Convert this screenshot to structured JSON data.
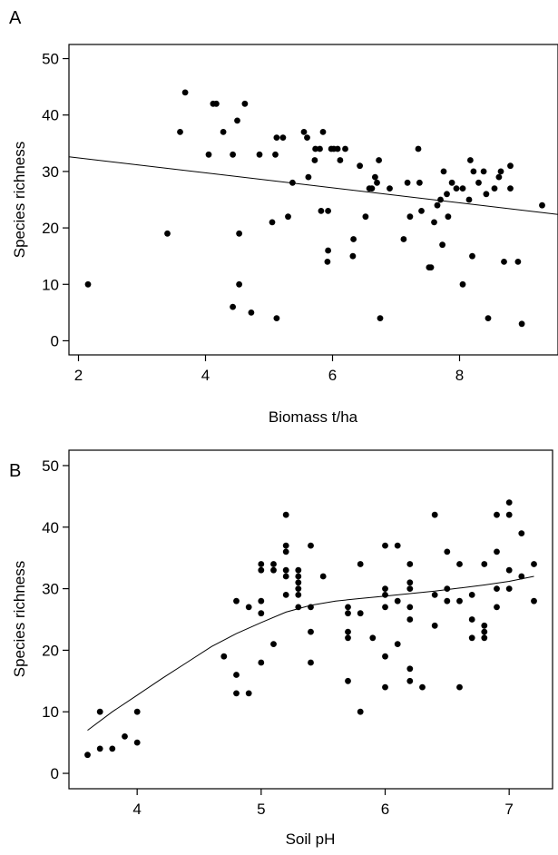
{
  "chart_data": [
    {
      "panel": "A",
      "type": "scatter",
      "xlabel": "Biomass t/ha",
      "ylabel": "Species richness",
      "xlim": [
        1.85,
        9.55
      ],
      "ylim": [
        -2.5,
        52.5
      ],
      "xticks": [
        2,
        4,
        6,
        8
      ],
      "yticks": [
        0,
        10,
        20,
        30,
        40,
        50
      ],
      "fit_line": {
        "type": "linear",
        "points": [
          [
            1.85,
            32.6
          ],
          [
            9.55,
            22.4
          ]
        ]
      },
      "points": [
        [
          2.15,
          10
        ],
        [
          3.4,
          19
        ],
        [
          3.6,
          37
        ],
        [
          3.68,
          44
        ],
        [
          4.05,
          33
        ],
        [
          4.12,
          42
        ],
        [
          4.17,
          42
        ],
        [
          4.28,
          37
        ],
        [
          4.43,
          33
        ],
        [
          4.43,
          6
        ],
        [
          4.5,
          39
        ],
        [
          4.53,
          19
        ],
        [
          4.53,
          10
        ],
        [
          4.62,
          42
        ],
        [
          4.72,
          5
        ],
        [
          4.85,
          33
        ],
        [
          5.05,
          21
        ],
        [
          5.1,
          33
        ],
        [
          5.12,
          36
        ],
        [
          5.12,
          4
        ],
        [
          5.22,
          36
        ],
        [
          5.3,
          22
        ],
        [
          5.37,
          28
        ],
        [
          5.55,
          37
        ],
        [
          5.6,
          36
        ],
        [
          5.62,
          29
        ],
        [
          5.72,
          32
        ],
        [
          5.73,
          34
        ],
        [
          5.8,
          34
        ],
        [
          5.82,
          23
        ],
        [
          5.85,
          37
        ],
        [
          5.92,
          14
        ],
        [
          5.93,
          16
        ],
        [
          5.93,
          23
        ],
        [
          5.98,
          34
        ],
        [
          6.02,
          34
        ],
        [
          6.08,
          34
        ],
        [
          6.12,
          32
        ],
        [
          6.2,
          34
        ],
        [
          6.32,
          15
        ],
        [
          6.33,
          18
        ],
        [
          6.43,
          31
        ],
        [
          6.52,
          22
        ],
        [
          6.58,
          27
        ],
        [
          6.62,
          27
        ],
        [
          6.67,
          29
        ],
        [
          6.7,
          28
        ],
        [
          6.73,
          32
        ],
        [
          6.75,
          4
        ],
        [
          6.9,
          27
        ],
        [
          7.12,
          18
        ],
        [
          7.18,
          28
        ],
        [
          7.22,
          22
        ],
        [
          7.35,
          34
        ],
        [
          7.37,
          28
        ],
        [
          7.4,
          23
        ],
        [
          7.52,
          13
        ],
        [
          7.55,
          13
        ],
        [
          7.6,
          21
        ],
        [
          7.65,
          24
        ],
        [
          7.7,
          25
        ],
        [
          7.73,
          17
        ],
        [
          7.75,
          30
        ],
        [
          7.8,
          26
        ],
        [
          7.82,
          22
        ],
        [
          7.88,
          28
        ],
        [
          7.95,
          27
        ],
        [
          8.05,
          10
        ],
        [
          8.05,
          27
        ],
        [
          8.15,
          25
        ],
        [
          8.17,
          32
        ],
        [
          8.2,
          15
        ],
        [
          8.22,
          30
        ],
        [
          8.3,
          28
        ],
        [
          8.38,
          30
        ],
        [
          8.42,
          26
        ],
        [
          8.45,
          4
        ],
        [
          8.55,
          27
        ],
        [
          8.62,
          29
        ],
        [
          8.65,
          30
        ],
        [
          8.7,
          14
        ],
        [
          8.8,
          31
        ],
        [
          8.8,
          27
        ],
        [
          8.92,
          14
        ],
        [
          8.98,
          3
        ],
        [
          9.3,
          24
        ]
      ]
    },
    {
      "panel": "B",
      "type": "scatter",
      "xlabel": "Soil pH",
      "ylabel": "Species richness",
      "xlim": [
        3.45,
        7.35
      ],
      "ylim": [
        -2.5,
        52.5
      ],
      "xticks": [
        4,
        5,
        6,
        7
      ],
      "yticks": [
        0,
        10,
        20,
        30,
        40,
        50
      ],
      "fit_line": {
        "type": "smooth",
        "points": [
          [
            3.6,
            7
          ],
          [
            3.8,
            10
          ],
          [
            4.0,
            12.7
          ],
          [
            4.2,
            15.4
          ],
          [
            4.4,
            18
          ],
          [
            4.6,
            20.6
          ],
          [
            4.8,
            22.7
          ],
          [
            5.0,
            24.5
          ],
          [
            5.2,
            26.2
          ],
          [
            5.4,
            27.3
          ],
          [
            5.6,
            28
          ],
          [
            5.8,
            28.4
          ],
          [
            6.0,
            28.8
          ],
          [
            6.2,
            29.2
          ],
          [
            6.4,
            29.6
          ],
          [
            6.6,
            30.1
          ],
          [
            6.8,
            30.6
          ],
          [
            7.0,
            31.2
          ],
          [
            7.2,
            32
          ]
        ]
      },
      "points": [
        [
          3.6,
          3
        ],
        [
          3.7,
          4
        ],
        [
          3.7,
          10
        ],
        [
          3.8,
          4
        ],
        [
          3.9,
          6
        ],
        [
          4.0,
          5
        ],
        [
          4.0,
          10
        ],
        [
          4.7,
          19
        ],
        [
          4.8,
          13
        ],
        [
          4.8,
          16
        ],
        [
          4.8,
          28
        ],
        [
          4.9,
          13
        ],
        [
          4.9,
          27
        ],
        [
          5.0,
          18
        ],
        [
          5.0,
          26
        ],
        [
          5.0,
          28
        ],
        [
          5.0,
          33
        ],
        [
          5.0,
          34
        ],
        [
          5.1,
          21
        ],
        [
          5.1,
          33
        ],
        [
          5.1,
          34
        ],
        [
          5.2,
          29
        ],
        [
          5.2,
          32
        ],
        [
          5.2,
          33
        ],
        [
          5.2,
          36
        ],
        [
          5.2,
          37
        ],
        [
          5.2,
          42
        ],
        [
          5.3,
          27
        ],
        [
          5.3,
          29
        ],
        [
          5.3,
          30
        ],
        [
          5.3,
          31
        ],
        [
          5.3,
          32
        ],
        [
          5.3,
          33
        ],
        [
          5.4,
          18
        ],
        [
          5.4,
          23
        ],
        [
          5.4,
          27
        ],
        [
          5.4,
          37
        ],
        [
          5.5,
          32
        ],
        [
          5.7,
          15
        ],
        [
          5.7,
          22
        ],
        [
          5.7,
          23
        ],
        [
          5.7,
          26
        ],
        [
          5.7,
          27
        ],
        [
          5.8,
          10
        ],
        [
          5.8,
          26
        ],
        [
          5.8,
          34
        ],
        [
          5.9,
          22
        ],
        [
          6.0,
          14
        ],
        [
          6.0,
          19
        ],
        [
          6.0,
          27
        ],
        [
          6.0,
          29
        ],
        [
          6.0,
          30
        ],
        [
          6.0,
          37
        ],
        [
          6.1,
          21
        ],
        [
          6.1,
          28
        ],
        [
          6.1,
          37
        ],
        [
          6.2,
          15
        ],
        [
          6.2,
          17
        ],
        [
          6.2,
          25
        ],
        [
          6.2,
          27
        ],
        [
          6.2,
          30
        ],
        [
          6.2,
          31
        ],
        [
          6.2,
          34
        ],
        [
          6.3,
          14
        ],
        [
          6.4,
          24
        ],
        [
          6.4,
          29
        ],
        [
          6.4,
          42
        ],
        [
          6.5,
          28
        ],
        [
          6.5,
          30
        ],
        [
          6.5,
          36
        ],
        [
          6.6,
          14
        ],
        [
          6.6,
          28
        ],
        [
          6.6,
          34
        ],
        [
          6.7,
          22
        ],
        [
          6.7,
          25
        ],
        [
          6.7,
          29
        ],
        [
          6.8,
          22
        ],
        [
          6.8,
          23
        ],
        [
          6.8,
          24
        ],
        [
          6.8,
          34
        ],
        [
          6.9,
          27
        ],
        [
          6.9,
          30
        ],
        [
          6.9,
          36
        ],
        [
          6.9,
          42
        ],
        [
          7.0,
          30
        ],
        [
          7.0,
          33
        ],
        [
          7.0,
          42
        ],
        [
          7.0,
          44
        ],
        [
          7.1,
          32
        ],
        [
          7.1,
          39
        ],
        [
          7.2,
          28
        ],
        [
          7.2,
          34
        ]
      ]
    }
  ]
}
